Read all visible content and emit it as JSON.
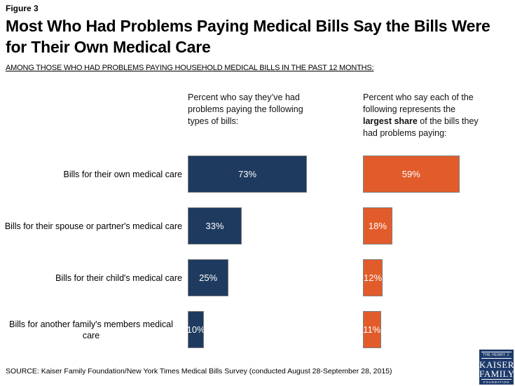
{
  "figure_label": "Figure 3",
  "title": "Most Who Had Problems Paying Medical Bills Say the Bills Were for Their Own Medical Care",
  "subtitle": "AMONG THOSE WHO HAD PROBLEMS PAYING HOUSEHOLD MEDICAL BILLS IN THE PAST 12 MONTHS:",
  "left_column_header": "Percent who say they’ve had problems paying the following types of bills:",
  "right_column_header": {
    "line1": "Percent who say each of the",
    "line2": "following represents the",
    "line3_bold": "largest share",
    "line3_rest": " of the bills they",
    "line4": "had problems paying:"
  },
  "chart_data": {
    "type": "bar",
    "orientation": "horizontal",
    "categories": [
      "Bills for their own medical care",
      "Bills for their spouse or partner's medical care",
      "Bills for their child's medical care",
      "Bills for another family's members medical care"
    ],
    "series": [
      {
        "name": "Percent who say they've had problems paying the following types of bills",
        "color": "#1e3a5f",
        "values": [
          73,
          33,
          25,
          10
        ]
      },
      {
        "name": "Percent who say each of the following represents the largest share of the bills they had problems paying",
        "color": "#e25c2b",
        "values": [
          59,
          18,
          12,
          11
        ]
      }
    ],
    "unit": "%",
    "xlim": [
      0,
      100
    ],
    "value_labels": "inside-center",
    "grid": false,
    "legend": "column-headers"
  },
  "source": "SOURCE: Kaiser Family Foundation/New York Times Medical Bills Survey (conducted August 28-September 28, 2015)",
  "logo": {
    "line1": "THE HENRY J.",
    "line2": "KAISER",
    "line3": "FAMILY",
    "line4": "FOUNDATION"
  },
  "colors": {
    "navy": "#1e3a5f",
    "orange": "#e25c2b",
    "bar_border": "#7f7f7f",
    "logo_bg": "#1d3a6b",
    "text": "#000000"
  }
}
